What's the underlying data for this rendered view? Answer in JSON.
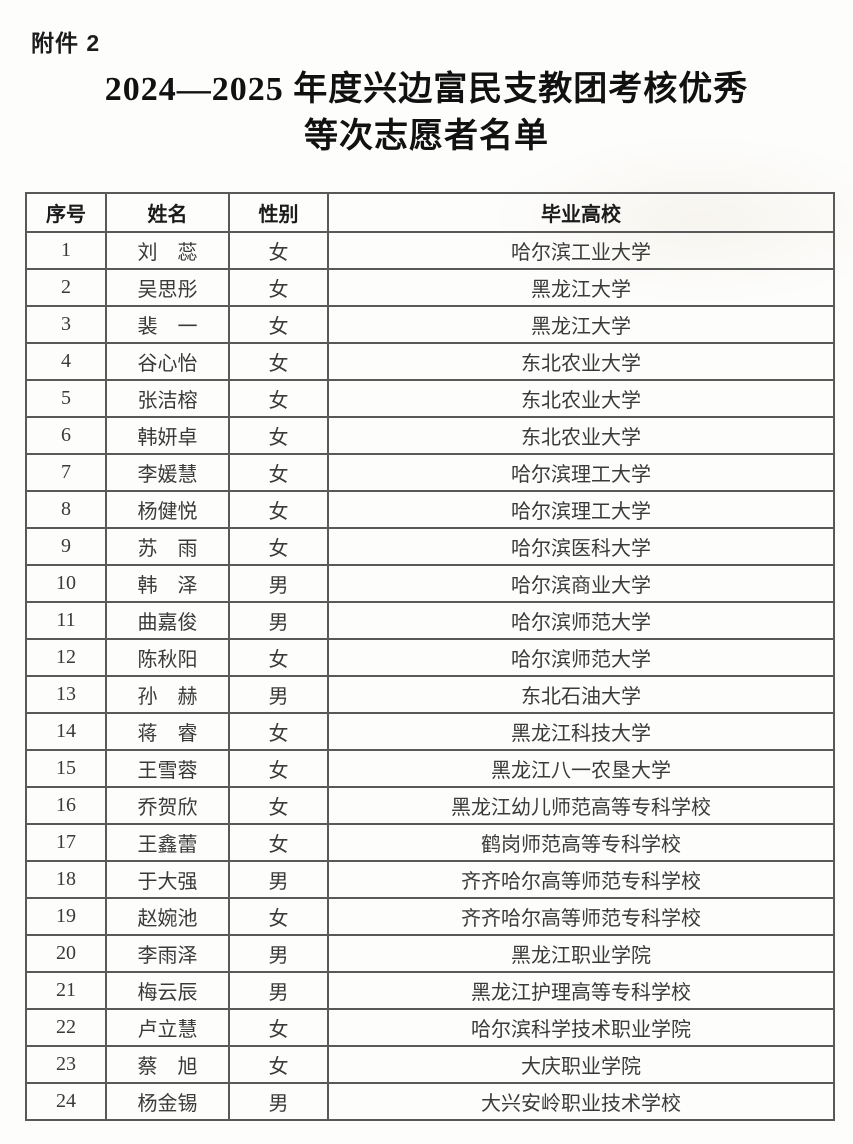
{
  "page": {
    "attachment_label": "附件 2",
    "title_line1": "2024—2025 年度兴边富民支教团考核优秀",
    "title_line2": "等次志愿者名单"
  },
  "table": {
    "headers": [
      "序号",
      "姓名",
      "性别",
      "毕业高校"
    ],
    "rows": [
      {
        "no": "1",
        "name": "刘　蕊",
        "gender": "女",
        "school": "哈尔滨工业大学"
      },
      {
        "no": "2",
        "name": "吴思彤",
        "gender": "女",
        "school": "黑龙江大学"
      },
      {
        "no": "3",
        "name": "裴　一",
        "gender": "女",
        "school": "黑龙江大学"
      },
      {
        "no": "4",
        "name": "谷心怡",
        "gender": "女",
        "school": "东北农业大学"
      },
      {
        "no": "5",
        "name": "张洁榕",
        "gender": "女",
        "school": "东北农业大学"
      },
      {
        "no": "6",
        "name": "韩妍卓",
        "gender": "女",
        "school": "东北农业大学"
      },
      {
        "no": "7",
        "name": "李媛慧",
        "gender": "女",
        "school": "哈尔滨理工大学"
      },
      {
        "no": "8",
        "name": "杨健悦",
        "gender": "女",
        "school": "哈尔滨理工大学"
      },
      {
        "no": "9",
        "name": "苏　雨",
        "gender": "女",
        "school": "哈尔滨医科大学"
      },
      {
        "no": "10",
        "name": "韩　泽",
        "gender": "男",
        "school": "哈尔滨商业大学"
      },
      {
        "no": "11",
        "name": "曲嘉俊",
        "gender": "男",
        "school": "哈尔滨师范大学"
      },
      {
        "no": "12",
        "name": "陈秋阳",
        "gender": "女",
        "school": "哈尔滨师范大学"
      },
      {
        "no": "13",
        "name": "孙　赫",
        "gender": "男",
        "school": "东北石油大学"
      },
      {
        "no": "14",
        "name": "蒋　睿",
        "gender": "女",
        "school": "黑龙江科技大学"
      },
      {
        "no": "15",
        "name": "王雪蓉",
        "gender": "女",
        "school": "黑龙江八一农垦大学"
      },
      {
        "no": "16",
        "name": "乔贺欣",
        "gender": "女",
        "school": "黑龙江幼儿师范高等专科学校"
      },
      {
        "no": "17",
        "name": "王鑫蕾",
        "gender": "女",
        "school": "鹤岗师范高等专科学校"
      },
      {
        "no": "18",
        "name": "于大强",
        "gender": "男",
        "school": "齐齐哈尔高等师范专科学校"
      },
      {
        "no": "19",
        "name": "赵婉池",
        "gender": "女",
        "school": "齐齐哈尔高等师范专科学校"
      },
      {
        "no": "20",
        "name": "李雨泽",
        "gender": "男",
        "school": "黑龙江职业学院"
      },
      {
        "no": "21",
        "name": "梅云辰",
        "gender": "男",
        "school": "黑龙江护理高等专科学校"
      },
      {
        "no": "22",
        "name": "卢立慧",
        "gender": "女",
        "school": "哈尔滨科学技术职业学院"
      },
      {
        "no": "23",
        "name": "蔡　旭",
        "gender": "女",
        "school": "大庆职业学院"
      },
      {
        "no": "24",
        "name": "杨金锡",
        "gender": "男",
        "school": "大兴安岭职业技术学校"
      }
    ]
  },
  "colors": {
    "background": "#fdfdfc",
    "table_border": "#595959",
    "body_text": "#3a3a3a",
    "title_text": "#111111"
  }
}
